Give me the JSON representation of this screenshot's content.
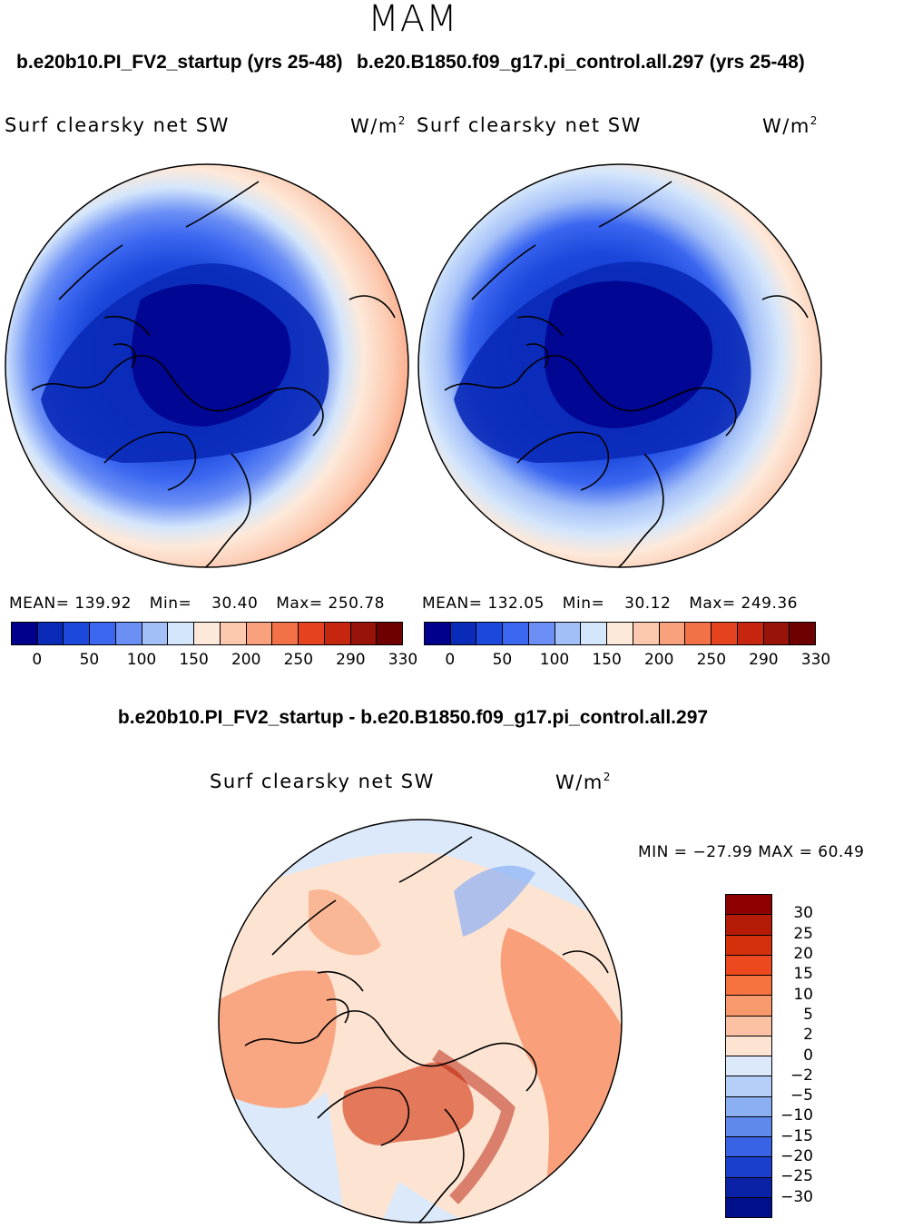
{
  "season": "MAM",
  "top_left": {
    "case_title": "b.e20b10.PI_FV2_startup (yrs 25-48)",
    "variable": "Surf clearsky net SW",
    "units": "W/m",
    "units_exp": "2",
    "stats": {
      "mean_label": "MEAN=",
      "mean": "139.92",
      "min_label": "Min=",
      "min": "30.40",
      "max_label": "Max=",
      "max": "250.78"
    }
  },
  "top_right": {
    "case_title": "b.e20.B1850.f09_g17.pi_control.all.297 (yrs 25-48)",
    "variable": "Surf clearsky net SW",
    "units": "W/m",
    "units_exp": "2",
    "stats": {
      "mean_label": "MEAN=",
      "mean": "132.05",
      "min_label": "Min=",
      "min": "30.12",
      "max_label": "Max=",
      "max": "249.36"
    }
  },
  "abs_colorbar": {
    "ticks": [
      "0",
      "50",
      "100",
      "150",
      "200",
      "250",
      "290",
      "330"
    ],
    "colors": [
      "#00008c",
      "#0a2ab8",
      "#1c48dc",
      "#3a66f0",
      "#6b8ff5",
      "#a3bff8",
      "#d4e6fb",
      "#fde9da",
      "#fcc8ae",
      "#f9a07c",
      "#f27147",
      "#e5431f",
      "#c6260e",
      "#98130a",
      "#6e0000"
    ]
  },
  "diff": {
    "title": "b.e20b10.PI_FV2_startup - b.e20.B1850.f09_g17.pi_control.all.297",
    "variable": "Surf clearsky net SW",
    "units": "W/m",
    "units_exp": "2",
    "minmax": "MIN = −27.99  MAX =  60.49",
    "ticks": [
      "30",
      "25",
      "20",
      "15",
      "10",
      "5",
      "2",
      "0",
      "−2",
      "−5",
      "−10",
      "−15",
      "−20",
      "−25",
      "−30"
    ],
    "colors": [
      "#8e0000",
      "#b51a06",
      "#d4300c",
      "#ec4a1e",
      "#f6733f",
      "#f99a6d",
      "#fcc1a2",
      "#fde4d2",
      "#dbe9fa",
      "#b4cff8",
      "#8aaff3",
      "#5f89ed",
      "#3763e4",
      "#1a3fcc",
      "#0a22a6",
      "#00108a"
    ]
  }
}
